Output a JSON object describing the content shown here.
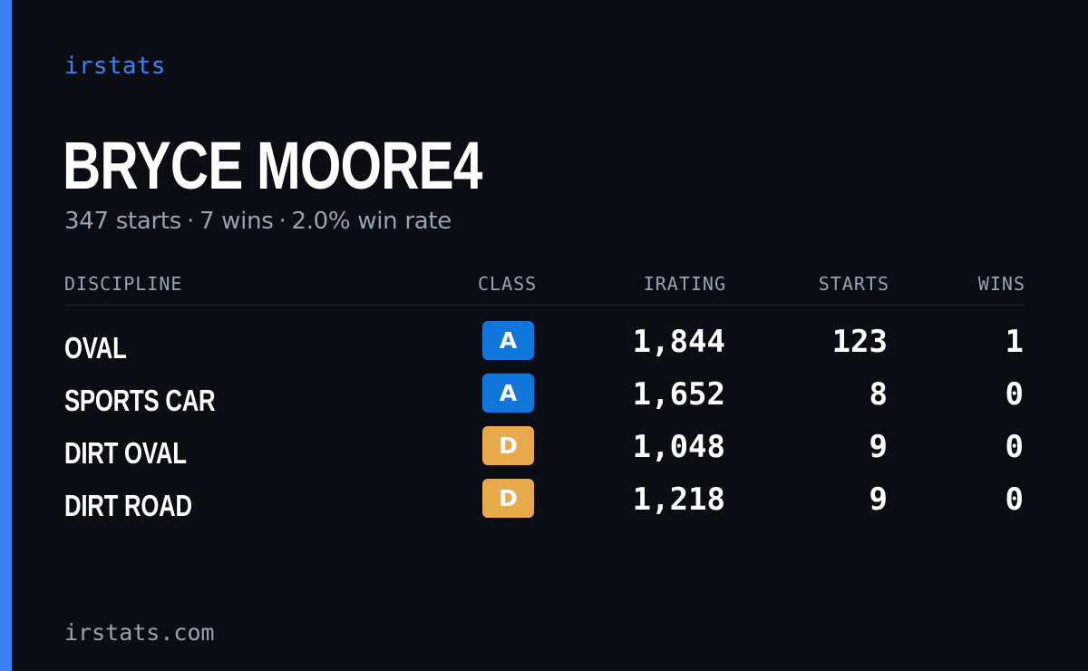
{
  "brand": {
    "name": "irstats",
    "domain": "irstats.com"
  },
  "colors": {
    "background": "#0a0d14",
    "accent": "#3d82f5",
    "text_primary": "#ffffff",
    "text_muted": "#97a3b6",
    "class_a": "#1176d9",
    "class_d": "#e8a94c"
  },
  "player": {
    "name": "BRYCE MOORE4",
    "starts": "347 starts",
    "separator": "·",
    "wins": "7 wins",
    "win_rate": "2.0% win rate"
  },
  "table": {
    "headers": {
      "discipline": "DISCIPLINE",
      "class": "CLASS",
      "irating": "IRATING",
      "starts": "STARTS",
      "wins": "WINS"
    },
    "rows": [
      {
        "discipline": "OVAL",
        "class": "A",
        "irating": "1,844",
        "starts": "123",
        "wins": "1"
      },
      {
        "discipline": "SPORTS CAR",
        "class": "A",
        "irating": "1,652",
        "starts": "8",
        "wins": "0"
      },
      {
        "discipline": "DIRT OVAL",
        "class": "D",
        "irating": "1,048",
        "starts": "9",
        "wins": "0"
      },
      {
        "discipline": "DIRT ROAD",
        "class": "D",
        "irating": "1,218",
        "starts": "9",
        "wins": "0"
      }
    ]
  }
}
